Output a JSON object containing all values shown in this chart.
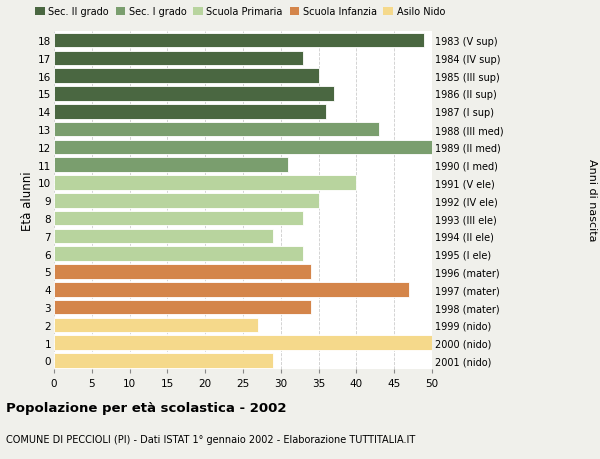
{
  "ages": [
    18,
    17,
    16,
    15,
    14,
    13,
    12,
    11,
    10,
    9,
    8,
    7,
    6,
    5,
    4,
    3,
    2,
    1,
    0
  ],
  "values": [
    49,
    33,
    35,
    37,
    36,
    43,
    50,
    31,
    40,
    35,
    33,
    29,
    33,
    34,
    47,
    34,
    27,
    50,
    29
  ],
  "right_labels": [
    "1983 (V sup)",
    "1984 (IV sup)",
    "1985 (III sup)",
    "1986 (II sup)",
    "1987 (I sup)",
    "1988 (III med)",
    "1989 (II med)",
    "1990 (I med)",
    "1991 (V ele)",
    "1992 (IV ele)",
    "1993 (III ele)",
    "1994 (II ele)",
    "1995 (I ele)",
    "1996 (mater)",
    "1997 (mater)",
    "1998 (mater)",
    "1999 (nido)",
    "2000 (nido)",
    "2001 (nido)"
  ],
  "colors": [
    "#4a6741",
    "#4a6741",
    "#4a6741",
    "#4a6741",
    "#4a6741",
    "#7a9e6e",
    "#7a9e6e",
    "#7a9e6e",
    "#b8d49e",
    "#b8d49e",
    "#b8d49e",
    "#b8d49e",
    "#b8d49e",
    "#d4854a",
    "#d4854a",
    "#d4854a",
    "#f5d98b",
    "#f5d98b",
    "#f5d98b"
  ],
  "legend_labels": [
    "Sec. II grado",
    "Sec. I grado",
    "Scuola Primaria",
    "Scuola Infanzia",
    "Asilo Nido"
  ],
  "legend_colors": [
    "#4a6741",
    "#7a9e6e",
    "#b8d49e",
    "#d4854a",
    "#f5d98b"
  ],
  "ylabel_left": "Età alunni",
  "ylabel_right": "Anni di nascita",
  "title": "Popolazione per età scolastica - 2002",
  "subtitle": "COMUNE DI PECCIOLI (PI) - Dati ISTAT 1° gennaio 2002 - Elaborazione TUTTITALIA.IT",
  "xlim": [
    0,
    50
  ],
  "xticks": [
    0,
    5,
    10,
    15,
    20,
    25,
    30,
    35,
    40,
    45,
    50
  ],
  "bg_color": "#f0f0eb",
  "bar_bg_color": "#ffffff",
  "grid_color": "#cccccc"
}
